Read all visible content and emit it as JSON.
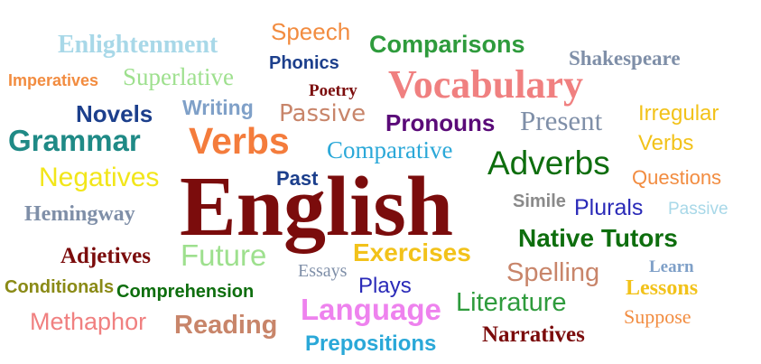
{
  "words": {
    "enlightenment": "Enlightenment",
    "speech": "Speech",
    "comparisons": "Comparisons",
    "shakespeare": "Shakespeare",
    "phonics": "Phonics",
    "imperatives": "Imperatives",
    "superlative": "Superlative",
    "poetry": "Poetry",
    "vocabulary": "Vocabulary",
    "novels": "Novels",
    "writing": "Writing",
    "passive_top": "Passive",
    "pronouns": "Pronouns",
    "present": "Present",
    "irregular": "Irregular",
    "irregular_verbs": "Verbs",
    "grammar": "Grammar",
    "verbs": "Verbs",
    "comparative": "Comparative",
    "adverbs": "Adverbs",
    "negatives": "Negatives",
    "past": "Past",
    "questions": "Questions",
    "english": "English",
    "simile": "Simile",
    "plurals": "Plurals",
    "passive_right": "Passive",
    "hemingway": "Hemingway",
    "native_tutors": "Native Tutors",
    "adjetives": "Adjetives",
    "future": "Future",
    "exercises": "Exercises",
    "essays": "Essays",
    "spelling": "Spelling",
    "learn": "Learn",
    "conditionals": "Conditionals",
    "comprehension": "Comprehension",
    "plays": "Plays",
    "lessons": "Lessons",
    "literature": "Literature",
    "language": "Language",
    "methaphor": "Methaphor",
    "reading": "Reading",
    "suppose": "Suppose",
    "narratives": "Narratives",
    "prepositions": "Prepositions"
  },
  "colors": {
    "english": "#7b0c0c",
    "vocabulary": "#f08080",
    "verbs": "#f47c3c",
    "grammar": "#1f8a86",
    "native_tutors": "#0e6e0e",
    "language": "#ee82ee"
  }
}
